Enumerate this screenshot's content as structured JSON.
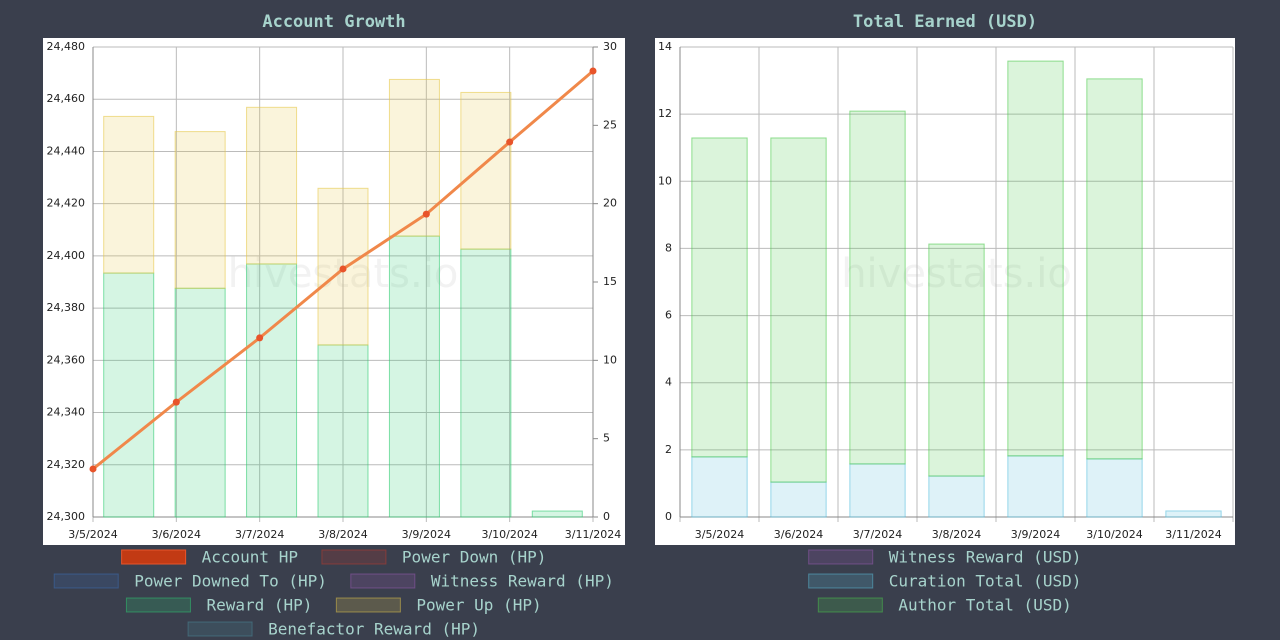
{
  "chart_data": [
    {
      "type": "combo",
      "title": "Account Growth",
      "watermark": "hivestats.io",
      "categories": [
        "3/5/2024",
        "3/6/2024",
        "3/7/2024",
        "3/8/2024",
        "3/9/2024",
        "3/10/2024",
        "3/11/2024"
      ],
      "series": [
        {
          "name": "Account HP",
          "color": "#e8542a",
          "kind": "line",
          "values": [
            24318.4,
            24344,
            24368.6,
            24395,
            24416,
            24443.6,
            24470.8
          ]
        },
        {
          "name": "Power Down (HP)",
          "color": "#c0392b"
        },
        {
          "name": "Power Downed To (HP)",
          "color": "#3a6fb8"
        },
        {
          "name": "Witness Reward (HP)",
          "color": "#9b59b6"
        },
        {
          "name": "Reward (HP)",
          "color": "#2ecc71",
          "axis": "y2",
          "values": [
            15.57,
            14.6,
            16.15,
            10.98,
            17.93,
            17.1,
            0.38
          ]
        },
        {
          "name": "Power Up (HP)",
          "color": "#e6c84a",
          "axis": "y2",
          "values": [
            10,
            10,
            10,
            10,
            10,
            10,
            0
          ]
        },
        {
          "name": "Benefactor Reward (HP)",
          "color": "#4a8a9a"
        }
      ],
      "stacked": true,
      "grid": true,
      "ylim": [
        24300,
        24480
      ],
      "yticks": [
        {
          "value": 24300,
          "label": "24,300"
        },
        {
          "value": 24320,
          "label": "24,320"
        },
        {
          "value": 24340,
          "label": "24,340"
        },
        {
          "value": 24360,
          "label": "24,360"
        },
        {
          "value": 24380,
          "label": "24,380"
        },
        {
          "value": 24400,
          "label": "24,400"
        },
        {
          "value": 24420,
          "label": "24,420"
        },
        {
          "value": 24440,
          "label": "24,440"
        },
        {
          "value": 24460,
          "label": "24,460"
        },
        {
          "value": 24480,
          "label": "24,480"
        }
      ],
      "y2lim": [
        0,
        30
      ],
      "y2ticks": [
        0,
        5,
        10,
        15,
        20,
        25,
        30
      ]
    },
    {
      "type": "bar",
      "title": "Total Earned (USD)",
      "watermark": "hivestats.io",
      "categories": [
        "3/5/2024",
        "3/6/2024",
        "3/7/2024",
        "3/8/2024",
        "3/9/2024",
        "3/10/2024",
        "3/11/2024"
      ],
      "series": [
        {
          "name": "Witness Reward (USD)",
          "color": "#9b59b6"
        },
        {
          "name": "Curation Total (USD)",
          "color": "#5bc0de",
          "values": [
            1.79,
            1.04,
            1.58,
            1.22,
            1.82,
            1.73,
            0.18
          ]
        },
        {
          "name": "Author Total (USD)",
          "color": "#4cc94c",
          "values": [
            9.5,
            10.25,
            10.51,
            6.91,
            11.76,
            11.32,
            0
          ]
        }
      ],
      "stacked": true,
      "grid": true,
      "ylim": [
        0,
        14
      ],
      "yticks": [
        0,
        2,
        4,
        6,
        8,
        10,
        12,
        14
      ]
    }
  ]
}
